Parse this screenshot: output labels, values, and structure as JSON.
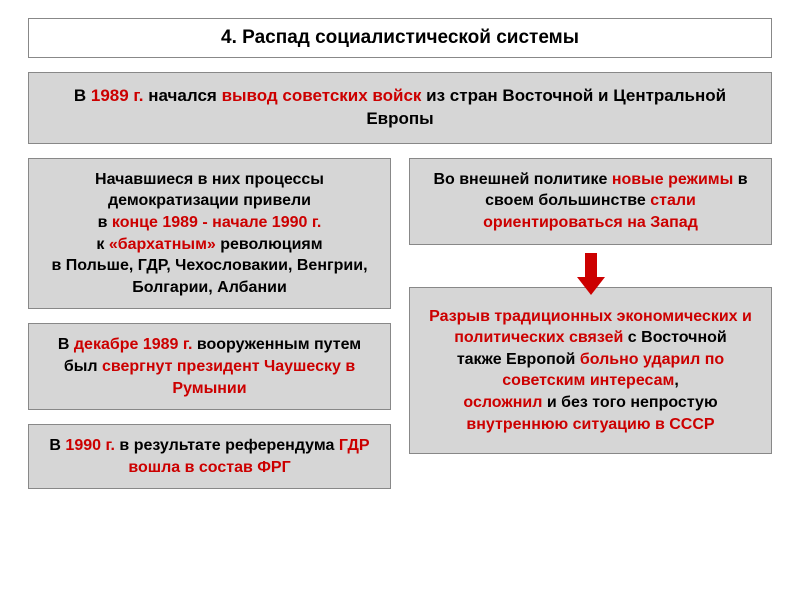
{
  "colors": {
    "box_bg": "#d6d6d6",
    "border": "#888888",
    "text": "#000000",
    "highlight": "#cc0000",
    "page_bg": "#ffffff"
  },
  "typography": {
    "family": "Arial",
    "title_size_pt": 19,
    "body_size_pt": 16,
    "weight": "bold"
  },
  "title": "4. Распад социалистической системы",
  "top": {
    "t1": "В ",
    "y1": "1989 г.",
    "t2": " начался ",
    "h1": "вывод советских войск",
    "t3": " из стран Восточной и Центральной Европы"
  },
  "left": {
    "box1": {
      "l1": "Начавшиеся в них процессы демократизации привели",
      "l2a": "в ",
      "l2b": "конце 1989 - начале 1990 г.",
      "l3a": "к ",
      "l3b": "«бархатным»",
      "l3c": " революциям",
      "l4": "в Польше, ГДР, Чехословакии, Венгрии, Болгарии, Албании"
    },
    "box2": {
      "a": "В ",
      "b": "декабре 1989 г.",
      "c": " вооруженным путем был ",
      "d": "свергнут  президент Чаушеску в Румынии"
    },
    "box3": {
      "a": "В ",
      "b": "1990 г.",
      "c": " в результате референдума ",
      "d": "ГДР",
      "e": "вошла в состав ФРГ"
    }
  },
  "right": {
    "box1": {
      "a": "Во внешней политике ",
      "b": "новые режимы",
      "c": " в своем большинстве ",
      "d": "стали ориентироваться на Запад"
    },
    "box2": {
      "a": "Разрыв традиционных экономических и политических связей",
      "b": " с Восточной",
      "c": "также Европой ",
      "d": "больно ударил по советским интересам",
      "e": ", ",
      "f": "осложнил",
      "g": " и без того непростую ",
      "h": "внутреннюю ситуацию в СССР"
    }
  }
}
